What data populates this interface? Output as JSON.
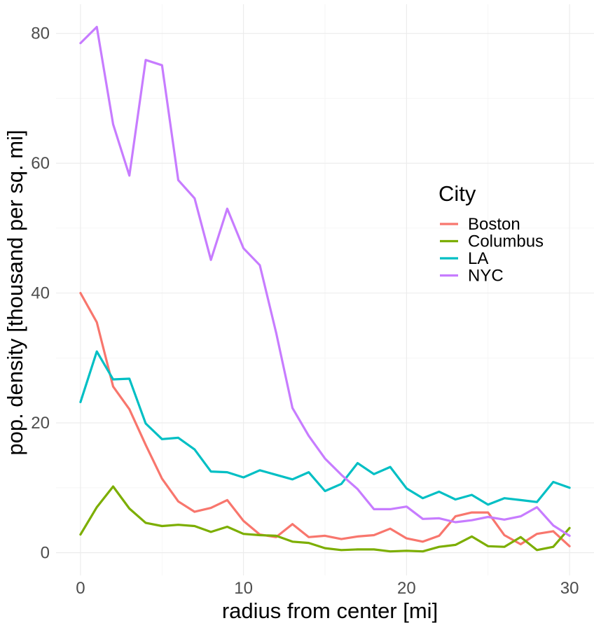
{
  "chart_data": {
    "type": "line",
    "title": "",
    "xlabel": "radius from center [mi]",
    "ylabel": "pop. density [thousand per sq. mi]",
    "xlim": [
      -1.5,
      31.5
    ],
    "ylim": [
      -3.5,
      84.5
    ],
    "x_ticks": [
      0,
      10,
      20,
      30
    ],
    "y_ticks": [
      0,
      20,
      40,
      60,
      80
    ],
    "x_tick_labels": [
      "0",
      "10",
      "20",
      "30"
    ],
    "y_tick_labels": [
      "0",
      "20",
      "40",
      "60",
      "80"
    ],
    "grid": true,
    "legend": {
      "title": "City",
      "placement": "right-middle"
    },
    "x": [
      0,
      1,
      2,
      3,
      4,
      5,
      6,
      7,
      8,
      9,
      10,
      11,
      12,
      13,
      14,
      15,
      16,
      17,
      18,
      19,
      20,
      21,
      22,
      23,
      24,
      25,
      26,
      27,
      28,
      29,
      30
    ],
    "series": [
      {
        "name": "Boston",
        "color": "#F8766D",
        "values": [
          40.0,
          35.5,
          25.6,
          22.1,
          16.6,
          11.4,
          7.9,
          6.3,
          6.9,
          8.1,
          4.9,
          2.8,
          2.4,
          4.4,
          2.4,
          2.6,
          2.1,
          2.5,
          2.7,
          3.7,
          2.2,
          1.7,
          2.6,
          5.6,
          6.2,
          6.2,
          2.7,
          1.3,
          2.9,
          3.3,
          1.0
        ]
      },
      {
        "name": "Columbus",
        "color": "#7CAE00",
        "values": [
          2.8,
          7.0,
          10.2,
          6.8,
          4.6,
          4.1,
          4.3,
          4.1,
          3.2,
          4.0,
          2.9,
          2.7,
          2.6,
          1.7,
          1.5,
          0.7,
          0.4,
          0.5,
          0.5,
          0.2,
          0.3,
          0.2,
          0.9,
          1.2,
          2.5,
          1.0,
          0.9,
          2.4,
          0.4,
          0.9,
          3.8
        ]
      },
      {
        "name": "LA",
        "color": "#00BFC4",
        "values": [
          23.2,
          31.0,
          26.7,
          26.8,
          19.9,
          17.5,
          17.7,
          15.9,
          12.5,
          12.4,
          11.6,
          12.7,
          12.0,
          11.3,
          12.4,
          9.5,
          10.6,
          13.8,
          12.1,
          13.2,
          9.9,
          8.4,
          9.4,
          8.2,
          8.9,
          7.4,
          8.4,
          8.1,
          7.8,
          10.9,
          10.0
        ]
      },
      {
        "name": "NYC",
        "color": "#C77CFF",
        "values": [
          78.5,
          81.0,
          66.0,
          58.1,
          75.9,
          75.1,
          57.4,
          54.6,
          45.1,
          53.0,
          46.9,
          44.3,
          33.9,
          22.3,
          18.0,
          14.5,
          12.0,
          9.8,
          6.7,
          6.7,
          7.1,
          5.2,
          5.3,
          4.7,
          5.0,
          5.5,
          5.1,
          5.6,
          7.0,
          4.2,
          2.6
        ]
      }
    ]
  }
}
